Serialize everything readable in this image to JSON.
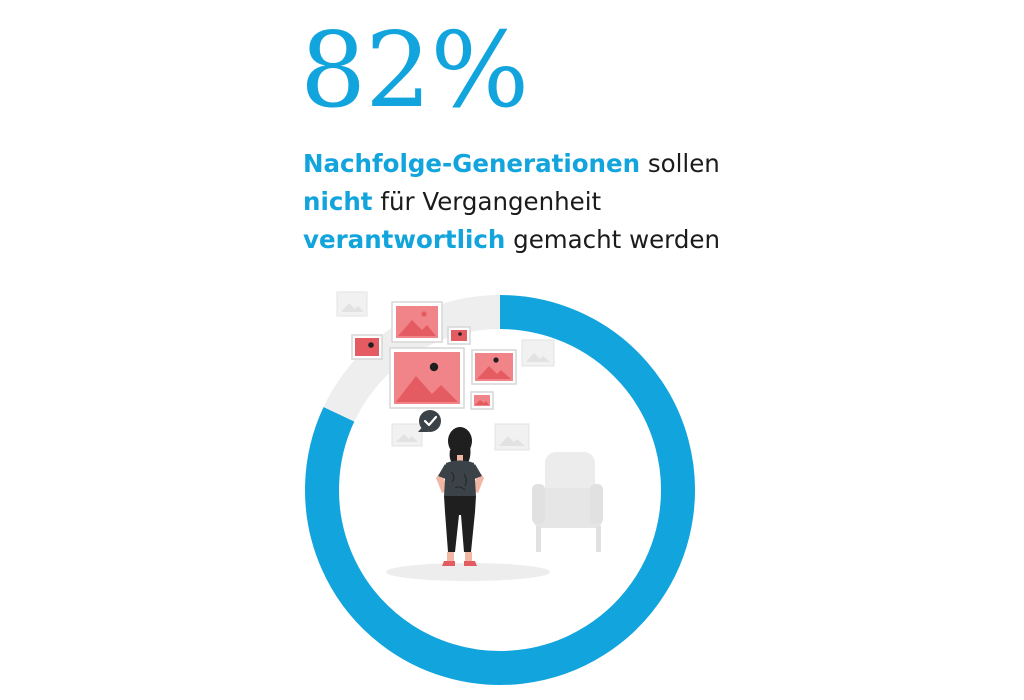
{
  "headline": {
    "value": "82%"
  },
  "statement": {
    "line1_highlight": "Nachfolge-Generationen",
    "line1_rest": " sollen",
    "line2_highlight": "nicht",
    "line2_rest": " für Vergangenheit",
    "line3_highlight": "verantwortlich",
    "line3_rest": " gemacht werden"
  },
  "colors": {
    "accent": "#12a4dd",
    "track": "#eeeeee",
    "frame_red": "#e55a5f",
    "text": "#1b1b1b"
  },
  "chart_data": {
    "type": "pie",
    "variant": "donut",
    "title": "",
    "series": [
      {
        "value": 82,
        "color": "#12a4dd"
      },
      {
        "value": 18,
        "color": "#eeeeee"
      }
    ],
    "start_angle_deg": 0,
    "direction": "clockwise",
    "center_illustration": "person-viewing-gallery-illustration"
  }
}
